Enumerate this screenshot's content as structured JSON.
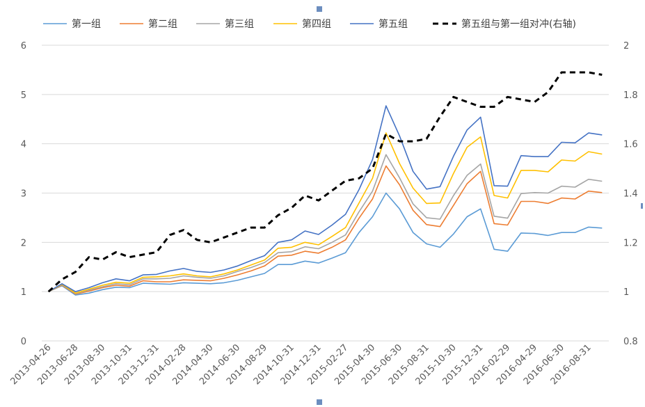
{
  "chart_data": {
    "type": "line",
    "title": "",
    "x": [
      "2013-04-26",
      "2013-05-31",
      "2013-06-28",
      "2013-07-31",
      "2013-08-30",
      "2013-09-30",
      "2013-10-31",
      "2013-11-29",
      "2013-12-31",
      "2014-01-30",
      "2014-02-28",
      "2014-03-31",
      "2014-04-30",
      "2014-05-30",
      "2014-06-30",
      "2014-07-31",
      "2014-08-29",
      "2014-09-30",
      "2014-10-31",
      "2014-11-28",
      "2014-12-31",
      "2015-01-30",
      "2015-02-27",
      "2015-03-31",
      "2015-04-30",
      "2015-05-29",
      "2015-06-30",
      "2015-07-31",
      "2015-08-31",
      "2015-09-30",
      "2015-10-30",
      "2015-11-30",
      "2015-12-31",
      "2016-01-29",
      "2016-02-29",
      "2016-03-31",
      "2016-04-29",
      "2016-05-31",
      "2016-06-30",
      "2016-07-29",
      "2016-08-31",
      "2016-09-30"
    ],
    "x_tick_labels": [
      "2013-04-26",
      "2013-06-28",
      "2013-08-30",
      "2013-10-31",
      "2013-12-31",
      "2014-02-28",
      "2014-04-30",
      "2014-06-30",
      "2014-08-29",
      "2014-10-31",
      "2014-12-31",
      "2015-02-27",
      "2015-04-30",
      "2015-06-30",
      "2015-08-31",
      "2015-10-30",
      "2015-12-31",
      "2016-02-29",
      "2016-04-29",
      "2016-06-30",
      "2016-08-31"
    ],
    "y_left": {
      "min": 0,
      "max": 6,
      "ticks": [
        "0",
        "1",
        "2",
        "3",
        "4",
        "5",
        "6"
      ]
    },
    "y_right": {
      "min": 0.8,
      "max": 2.0,
      "ticks": [
        "0.8",
        "1",
        "1.2",
        "1.4",
        "1.6",
        "1.8",
        "2"
      ]
    },
    "grid": true,
    "legend_position": "top",
    "series": [
      {
        "name": "第一组",
        "axis": "left",
        "color": "#5B9BD5",
        "dash": false,
        "values": [
          1.0,
          1.12,
          0.93,
          0.97,
          1.04,
          1.09,
          1.08,
          1.17,
          1.16,
          1.15,
          1.18,
          1.17,
          1.16,
          1.18,
          1.23,
          1.3,
          1.37,
          1.55,
          1.55,
          1.62,
          1.58,
          1.68,
          1.79,
          2.2,
          2.52,
          3.0,
          2.68,
          2.2,
          1.97,
          1.9,
          2.17,
          2.52,
          2.68,
          1.86,
          1.82,
          2.19,
          2.18,
          2.14,
          2.2,
          2.2,
          2.31,
          2.29
        ]
      },
      {
        "name": "第二组",
        "axis": "left",
        "color": "#ED7D31",
        "dash": false,
        "values": [
          1.0,
          1.13,
          0.95,
          1.01,
          1.08,
          1.13,
          1.11,
          1.22,
          1.2,
          1.2,
          1.24,
          1.23,
          1.22,
          1.27,
          1.34,
          1.42,
          1.52,
          1.72,
          1.74,
          1.82,
          1.78,
          1.9,
          2.05,
          2.49,
          2.88,
          3.55,
          3.17,
          2.65,
          2.36,
          2.32,
          2.75,
          3.19,
          3.44,
          2.38,
          2.35,
          2.83,
          2.83,
          2.79,
          2.9,
          2.88,
          3.04,
          3.01
        ]
      },
      {
        "name": "第三组",
        "axis": "left",
        "color": "#A5A5A5",
        "dash": false,
        "values": [
          1.0,
          1.14,
          0.96,
          1.03,
          1.1,
          1.16,
          1.14,
          1.26,
          1.26,
          1.27,
          1.32,
          1.29,
          1.27,
          1.32,
          1.41,
          1.49,
          1.59,
          1.79,
          1.81,
          1.91,
          1.87,
          2.0,
          2.15,
          2.62,
          3.04,
          3.78,
          3.31,
          2.78,
          2.5,
          2.47,
          2.95,
          3.36,
          3.59,
          2.53,
          2.49,
          2.99,
          3.01,
          3.0,
          3.14,
          3.12,
          3.28,
          3.24
        ]
      },
      {
        "name": "第四组",
        "axis": "left",
        "color": "#FFC000",
        "dash": false,
        "values": [
          1.0,
          1.15,
          0.97,
          1.05,
          1.13,
          1.19,
          1.17,
          1.29,
          1.3,
          1.32,
          1.36,
          1.32,
          1.3,
          1.36,
          1.44,
          1.54,
          1.64,
          1.88,
          1.9,
          2.0,
          1.95,
          2.12,
          2.3,
          2.8,
          3.3,
          4.22,
          3.6,
          3.1,
          2.79,
          2.8,
          3.4,
          3.93,
          4.14,
          2.95,
          2.9,
          3.46,
          3.46,
          3.43,
          3.67,
          3.65,
          3.84,
          3.79
        ]
      },
      {
        "name": "第五组",
        "axis": "left",
        "color": "#4472C4",
        "dash": false,
        "values": [
          1.0,
          1.16,
          1.0,
          1.08,
          1.18,
          1.26,
          1.22,
          1.34,
          1.35,
          1.42,
          1.47,
          1.41,
          1.39,
          1.44,
          1.52,
          1.63,
          1.73,
          2.0,
          2.05,
          2.23,
          2.16,
          2.35,
          2.57,
          3.07,
          3.68,
          4.77,
          4.16,
          3.44,
          3.08,
          3.13,
          3.75,
          4.28,
          4.54,
          3.15,
          3.14,
          3.76,
          3.74,
          3.74,
          4.03,
          4.02,
          4.22,
          4.18
        ]
      },
      {
        "name": "第五组与第一组对冲(右轴)",
        "axis": "right",
        "color": "#000000",
        "dash": true,
        "values": [
          1.0,
          1.05,
          1.08,
          1.14,
          1.13,
          1.16,
          1.14,
          1.15,
          1.16,
          1.23,
          1.25,
          1.21,
          1.2,
          1.22,
          1.24,
          1.26,
          1.26,
          1.31,
          1.34,
          1.39,
          1.37,
          1.41,
          1.45,
          1.46,
          1.5,
          1.64,
          1.61,
          1.61,
          1.62,
          1.71,
          1.79,
          1.77,
          1.75,
          1.75,
          1.79,
          1.78,
          1.77,
          1.81,
          1.89,
          1.89,
          1.89,
          1.88
        ]
      }
    ]
  }
}
